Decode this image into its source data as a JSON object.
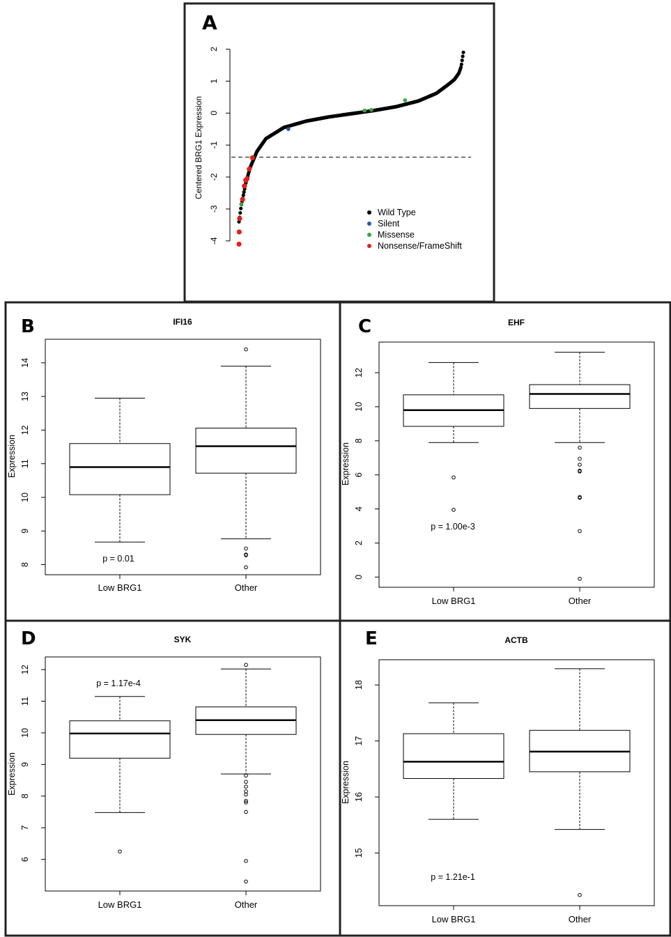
{
  "panels": [
    {
      "id": "A",
      "letter": "A"
    },
    {
      "id": "B",
      "letter": "B"
    },
    {
      "id": "C",
      "letter": "C"
    },
    {
      "id": "D",
      "letter": "D"
    },
    {
      "id": "E",
      "letter": "E"
    }
  ],
  "chart_data": [
    {
      "panel": "A",
      "type": "scatter",
      "title": "",
      "xlabel": "",
      "ylabel": "Centered BRG1 Expression",
      "ylim": [
        -4.2,
        2.1
      ],
      "yticks": [
        -4,
        -3,
        -2,
        -1,
        0,
        1,
        2
      ],
      "threshold_line": -1.38,
      "legend": {
        "placement": "bottom-right",
        "entries": [
          {
            "label": "Wild Type",
            "color": "#000000"
          },
          {
            "label": "Silent",
            "color": "#2b57a8"
          },
          {
            "label": "Missense",
            "color": "#3aa53a"
          },
          {
            "label": "Nonsense/FrameShift",
            "color": "#e0201c"
          }
        ]
      },
      "curve": [
        [
          0,
          -3.4
        ],
        [
          0.01,
          -2.9
        ],
        [
          0.03,
          -2.2
        ],
        [
          0.05,
          -1.7
        ],
        [
          0.08,
          -1.2
        ],
        [
          0.12,
          -0.8
        ],
        [
          0.2,
          -0.45
        ],
        [
          0.3,
          -0.25
        ],
        [
          0.4,
          -0.12
        ],
        [
          0.5,
          -0.02
        ],
        [
          0.6,
          0.08
        ],
        [
          0.7,
          0.2
        ],
        [
          0.8,
          0.38
        ],
        [
          0.88,
          0.62
        ],
        [
          0.93,
          0.88
        ],
        [
          0.96,
          1.05
        ],
        [
          0.98,
          1.25
        ],
        [
          0.99,
          1.45
        ],
        [
          1.0,
          1.9
        ]
      ],
      "highlights": [
        {
          "rank": 0.0,
          "value": -4.1,
          "group": "Nonsense/FrameShift"
        },
        {
          "rank": 0.001,
          "value": -3.72,
          "group": "Nonsense/FrameShift"
        },
        {
          "rank": 0.003,
          "value": -3.3,
          "group": "Nonsense/FrameShift"
        },
        {
          "rank": 0.01,
          "value": -2.85,
          "group": "Missense"
        },
        {
          "rank": 0.016,
          "value": -2.7,
          "group": "Nonsense/FrameShift"
        },
        {
          "rank": 0.024,
          "value": -2.28,
          "group": "Nonsense/FrameShift"
        },
        {
          "rank": 0.03,
          "value": -2.1,
          "group": "Nonsense/FrameShift"
        },
        {
          "rank": 0.036,
          "value": -2.05,
          "group": "Nonsense/FrameShift"
        },
        {
          "rank": 0.046,
          "value": -1.75,
          "group": "Nonsense/FrameShift"
        },
        {
          "rank": 0.06,
          "value": -1.4,
          "group": "Nonsense/FrameShift"
        },
        {
          "rank": 0.22,
          "value": -0.5,
          "group": "Silent"
        },
        {
          "rank": 0.56,
          "value": 0.08,
          "group": "Missense"
        },
        {
          "rank": 0.59,
          "value": 0.1,
          "group": "Missense"
        },
        {
          "rank": 0.74,
          "value": 0.4,
          "group": "Missense"
        }
      ]
    },
    {
      "panel": "B",
      "type": "box",
      "title": "IFI16",
      "ylabel": "Expression",
      "categories": [
        "Low BRG1",
        "Other"
      ],
      "ylim": [
        7.7,
        14.7
      ],
      "yticks": [
        8,
        9,
        10,
        11,
        12,
        13,
        14
      ],
      "pvalue": "p = 0.01",
      "boxes": [
        {
          "name": "Low BRG1",
          "low": 8.67,
          "q1": 10.08,
          "median": 10.9,
          "q3": 11.6,
          "high": 12.95,
          "outliers": []
        },
        {
          "name": "Other",
          "low": 8.77,
          "q1": 10.72,
          "median": 11.52,
          "q3": 12.06,
          "high": 13.9,
          "outliers": [
            14.4,
            8.48,
            8.3,
            8.28,
            7.92
          ]
        }
      ]
    },
    {
      "panel": "C",
      "type": "box",
      "title": "EHF",
      "ylabel": "Expression",
      "categories": [
        "Low BRG1",
        "Other"
      ],
      "ylim": [
        -0.6,
        13.8
      ],
      "yticks": [
        0,
        2,
        4,
        6,
        8,
        10,
        12
      ],
      "pvalue": "p = 1.00e-3",
      "boxes": [
        {
          "name": "Low BRG1",
          "low": 7.9,
          "q1": 8.85,
          "median": 9.8,
          "q3": 10.7,
          "high": 12.6,
          "outliers": [
            5.85,
            3.95
          ]
        },
        {
          "name": "Other",
          "low": 7.9,
          "q1": 9.9,
          "median": 10.75,
          "q3": 11.3,
          "high": 13.2,
          "outliers": [
            7.6,
            6.95,
            6.6,
            6.25,
            6.2,
            4.7,
            4.65,
            2.7,
            -0.1
          ]
        }
      ]
    },
    {
      "panel": "D",
      "type": "box",
      "title": "SYK",
      "ylabel": "Expression",
      "categories": [
        "Low BRG1",
        "Other"
      ],
      "ylim": [
        5.0,
        12.4
      ],
      "yticks": [
        6,
        7,
        8,
        9,
        10,
        11,
        12
      ],
      "pvalue": "p = 1.17e-4",
      "boxes": [
        {
          "name": "Low BRG1",
          "low": 7.48,
          "q1": 9.2,
          "median": 9.98,
          "q3": 10.38,
          "high": 11.15,
          "outliers": [
            6.25
          ]
        },
        {
          "name": "Other",
          "low": 8.7,
          "q1": 9.95,
          "median": 10.4,
          "q3": 10.82,
          "high": 12.02,
          "outliers": [
            12.15,
            8.65,
            8.45,
            8.3,
            8.15,
            8.05,
            7.85,
            7.8,
            7.5,
            5.95,
            5.3
          ]
        }
      ]
    },
    {
      "panel": "E",
      "type": "box",
      "title": "ACTB",
      "ylabel": "Expression",
      "categories": [
        "Low BRG1",
        "Other"
      ],
      "ylim": [
        14.06,
        18.45
      ],
      "yticks": [
        15,
        16,
        17,
        18
      ],
      "pvalue": "p = 1.21e-1",
      "boxes": [
        {
          "name": "Low BRG1",
          "low": 15.6,
          "q1": 16.33,
          "median": 16.63,
          "q3": 17.13,
          "high": 17.68,
          "outliers": []
        },
        {
          "name": "Other",
          "low": 15.42,
          "q1": 16.45,
          "median": 16.81,
          "q3": 17.19,
          "high": 18.29,
          "outliers": [
            14.25
          ]
        }
      ]
    }
  ]
}
